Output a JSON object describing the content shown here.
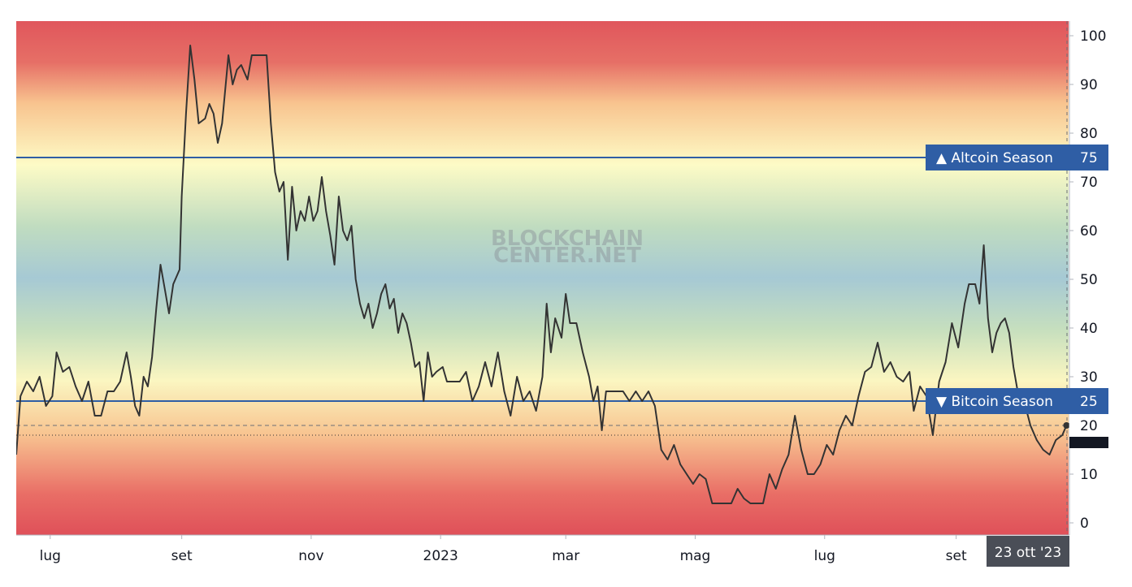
{
  "chart_data": {
    "type": "line",
    "title": "",
    "xlabel": "",
    "ylabel": "",
    "ylim": [
      -2.5,
      103
    ],
    "y_ticks": [
      0,
      10,
      20,
      30,
      40,
      50,
      60,
      70,
      80,
      90,
      100
    ],
    "y_tick_labels": [
      "0",
      "10",
      "20",
      "30",
      "40",
      "50",
      "60",
      "70",
      "80",
      "90",
      "100"
    ],
    "x_range": [
      "2022-06-15",
      "2023-10-24"
    ],
    "x_ticks": [
      {
        "date": "2022-07-01",
        "label": "lug"
      },
      {
        "date": "2022-09-01",
        "label": "set"
      },
      {
        "date": "2022-11-01",
        "label": "nov"
      },
      {
        "date": "2023-01-01",
        "label": "2023"
      },
      {
        "date": "2023-03-01",
        "label": "mar"
      },
      {
        "date": "2023-05-01",
        "label": "mag"
      },
      {
        "date": "2023-07-01",
        "label": "lug"
      },
      {
        "date": "2023-09-01",
        "label": "set"
      }
    ],
    "background": "red-yellow-blue-yellow-red horizontal gradient bands",
    "grid": false,
    "watermark": [
      "BLOCKCHAIN",
      "CENTER.NET"
    ],
    "reference_lines": [
      {
        "value": 75,
        "label": "▲ Altcoin Season",
        "value_label": "75",
        "color": "#2f5ea5"
      },
      {
        "value": 25,
        "label": "▼ Bitcoin Season",
        "value_label": "25",
        "color": "#2f5ea5"
      }
    ],
    "current_value": {
      "value": 20,
      "label": "20"
    },
    "hover_date_label": "23 ott '23",
    "series": [
      {
        "color": "#333333",
        "points": [
          [
            "2022-06-15",
            14
          ],
          [
            "2022-06-17",
            26
          ],
          [
            "2022-06-20",
            29
          ],
          [
            "2022-06-23",
            27
          ],
          [
            "2022-06-26",
            30
          ],
          [
            "2022-06-29",
            24
          ],
          [
            "2022-07-02",
            26
          ],
          [
            "2022-07-04",
            35
          ],
          [
            "2022-07-07",
            31
          ],
          [
            "2022-07-10",
            32
          ],
          [
            "2022-07-13",
            28
          ],
          [
            "2022-07-16",
            25
          ],
          [
            "2022-07-19",
            29
          ],
          [
            "2022-07-22",
            22
          ],
          [
            "2022-07-25",
            22
          ],
          [
            "2022-07-28",
            27
          ],
          [
            "2022-07-31",
            27
          ],
          [
            "2022-08-03",
            29
          ],
          [
            "2022-08-06",
            35
          ],
          [
            "2022-08-08",
            30
          ],
          [
            "2022-08-10",
            24
          ],
          [
            "2022-08-12",
            22
          ],
          [
            "2022-08-14",
            30
          ],
          [
            "2022-08-16",
            28
          ],
          [
            "2022-08-18",
            34
          ],
          [
            "2022-08-20",
            44
          ],
          [
            "2022-08-22",
            53
          ],
          [
            "2022-08-24",
            48
          ],
          [
            "2022-08-26",
            43
          ],
          [
            "2022-08-28",
            49
          ],
          [
            "2022-08-31",
            52
          ],
          [
            "2022-09-01",
            67
          ],
          [
            "2022-09-03",
            84
          ],
          [
            "2022-09-05",
            98
          ],
          [
            "2022-09-07",
            91
          ],
          [
            "2022-09-09",
            82
          ],
          [
            "2022-09-12",
            83
          ],
          [
            "2022-09-14",
            86
          ],
          [
            "2022-09-16",
            84
          ],
          [
            "2022-09-18",
            78
          ],
          [
            "2022-09-20",
            82
          ],
          [
            "2022-09-23",
            96
          ],
          [
            "2022-09-25",
            90
          ],
          [
            "2022-09-27",
            93
          ],
          [
            "2022-09-29",
            94
          ],
          [
            "2022-10-02",
            91
          ],
          [
            "2022-10-04",
            96
          ],
          [
            "2022-10-06",
            96
          ],
          [
            "2022-10-09",
            96
          ],
          [
            "2022-10-11",
            96
          ],
          [
            "2022-10-13",
            82
          ],
          [
            "2022-10-15",
            72
          ],
          [
            "2022-10-17",
            68
          ],
          [
            "2022-10-19",
            70
          ],
          [
            "2022-10-21",
            54
          ],
          [
            "2022-10-23",
            69
          ],
          [
            "2022-10-25",
            60
          ],
          [
            "2022-10-27",
            64
          ],
          [
            "2022-10-29",
            62
          ],
          [
            "2022-10-31",
            67
          ],
          [
            "2022-11-02",
            62
          ],
          [
            "2022-11-04",
            64
          ],
          [
            "2022-11-06",
            71
          ],
          [
            "2022-11-08",
            64
          ],
          [
            "2022-11-10",
            59
          ],
          [
            "2022-11-12",
            53
          ],
          [
            "2022-11-14",
            67
          ],
          [
            "2022-11-16",
            60
          ],
          [
            "2022-11-18",
            58
          ],
          [
            "2022-11-20",
            61
          ],
          [
            "2022-11-22",
            50
          ],
          [
            "2022-11-24",
            45
          ],
          [
            "2022-11-26",
            42
          ],
          [
            "2022-11-28",
            45
          ],
          [
            "2022-11-30",
            40
          ],
          [
            "2022-12-02",
            43
          ],
          [
            "2022-12-04",
            47
          ],
          [
            "2022-12-06",
            49
          ],
          [
            "2022-12-08",
            44
          ],
          [
            "2022-12-10",
            46
          ],
          [
            "2022-12-12",
            39
          ],
          [
            "2022-12-14",
            43
          ],
          [
            "2022-12-16",
            41
          ],
          [
            "2022-12-18",
            37
          ],
          [
            "2022-12-20",
            32
          ],
          [
            "2022-12-22",
            33
          ],
          [
            "2022-12-24",
            25
          ],
          [
            "2022-12-26",
            35
          ],
          [
            "2022-12-28",
            30
          ],
          [
            "2022-12-30",
            31
          ],
          [
            "2023-01-02",
            32
          ],
          [
            "2023-01-04",
            29
          ],
          [
            "2023-01-07",
            29
          ],
          [
            "2023-01-10",
            29
          ],
          [
            "2023-01-13",
            31
          ],
          [
            "2023-01-16",
            25
          ],
          [
            "2023-01-19",
            28
          ],
          [
            "2023-01-22",
            33
          ],
          [
            "2023-01-25",
            28
          ],
          [
            "2023-01-28",
            35
          ],
          [
            "2023-01-31",
            27
          ],
          [
            "2023-02-03",
            22
          ],
          [
            "2023-02-06",
            30
          ],
          [
            "2023-02-09",
            25
          ],
          [
            "2023-02-12",
            27
          ],
          [
            "2023-02-15",
            23
          ],
          [
            "2023-02-18",
            30
          ],
          [
            "2023-02-20",
            45
          ],
          [
            "2023-02-22",
            35
          ],
          [
            "2023-02-24",
            42
          ],
          [
            "2023-02-27",
            38
          ],
          [
            "2023-03-01",
            47
          ],
          [
            "2023-03-03",
            41
          ],
          [
            "2023-03-06",
            41
          ],
          [
            "2023-03-09",
            35
          ],
          [
            "2023-03-12",
            30
          ],
          [
            "2023-03-14",
            25
          ],
          [
            "2023-03-16",
            28
          ],
          [
            "2023-03-18",
            19
          ],
          [
            "2023-03-20",
            27
          ],
          [
            "2023-03-22",
            27
          ],
          [
            "2023-03-25",
            27
          ],
          [
            "2023-03-28",
            27
          ],
          [
            "2023-03-31",
            25
          ],
          [
            "2023-04-03",
            27
          ],
          [
            "2023-04-06",
            25
          ],
          [
            "2023-04-09",
            27
          ],
          [
            "2023-04-12",
            24
          ],
          [
            "2023-04-15",
            15
          ],
          [
            "2023-04-18",
            13
          ],
          [
            "2023-04-21",
            16
          ],
          [
            "2023-04-24",
            12
          ],
          [
            "2023-04-27",
            10
          ],
          [
            "2023-04-30",
            8
          ],
          [
            "2023-05-03",
            10
          ],
          [
            "2023-05-06",
            9
          ],
          [
            "2023-05-09",
            4
          ],
          [
            "2023-05-12",
            4
          ],
          [
            "2023-05-15",
            4
          ],
          [
            "2023-05-18",
            4
          ],
          [
            "2023-05-21",
            7
          ],
          [
            "2023-05-24",
            5
          ],
          [
            "2023-05-27",
            4
          ],
          [
            "2023-05-30",
            4
          ],
          [
            "2023-06-02",
            4
          ],
          [
            "2023-06-05",
            10
          ],
          [
            "2023-06-08",
            7
          ],
          [
            "2023-06-11",
            11
          ],
          [
            "2023-06-14",
            14
          ],
          [
            "2023-06-17",
            22
          ],
          [
            "2023-06-20",
            15
          ],
          [
            "2023-06-23",
            10
          ],
          [
            "2023-06-26",
            10
          ],
          [
            "2023-06-29",
            12
          ],
          [
            "2023-07-02",
            16
          ],
          [
            "2023-07-05",
            14
          ],
          [
            "2023-07-08",
            19
          ],
          [
            "2023-07-11",
            22
          ],
          [
            "2023-07-14",
            20
          ],
          [
            "2023-07-17",
            26
          ],
          [
            "2023-07-20",
            31
          ],
          [
            "2023-07-23",
            32
          ],
          [
            "2023-07-26",
            37
          ],
          [
            "2023-07-29",
            31
          ],
          [
            "2023-08-01",
            33
          ],
          [
            "2023-08-04",
            30
          ],
          [
            "2023-08-07",
            29
          ],
          [
            "2023-08-10",
            31
          ],
          [
            "2023-08-12",
            23
          ],
          [
            "2023-08-15",
            28
          ],
          [
            "2023-08-18",
            26
          ],
          [
            "2023-08-21",
            18
          ],
          [
            "2023-08-24",
            29
          ],
          [
            "2023-08-27",
            33
          ],
          [
            "2023-08-30",
            41
          ],
          [
            "2023-09-02",
            36
          ],
          [
            "2023-09-05",
            45
          ],
          [
            "2023-09-07",
            49
          ],
          [
            "2023-09-10",
            49
          ],
          [
            "2023-09-12",
            45
          ],
          [
            "2023-09-14",
            57
          ],
          [
            "2023-09-16",
            42
          ],
          [
            "2023-09-18",
            35
          ],
          [
            "2023-09-20",
            39
          ],
          [
            "2023-09-22",
            41
          ],
          [
            "2023-09-24",
            42
          ],
          [
            "2023-09-26",
            39
          ],
          [
            "2023-09-28",
            32
          ],
          [
            "2023-09-30",
            27
          ],
          [
            "2023-10-03",
            25
          ],
          [
            "2023-10-06",
            20
          ],
          [
            "2023-10-09",
            17
          ],
          [
            "2023-10-12",
            15
          ],
          [
            "2023-10-15",
            14
          ],
          [
            "2023-10-18",
            17
          ],
          [
            "2023-10-21",
            18
          ],
          [
            "2023-10-23",
            20
          ]
        ]
      }
    ]
  }
}
